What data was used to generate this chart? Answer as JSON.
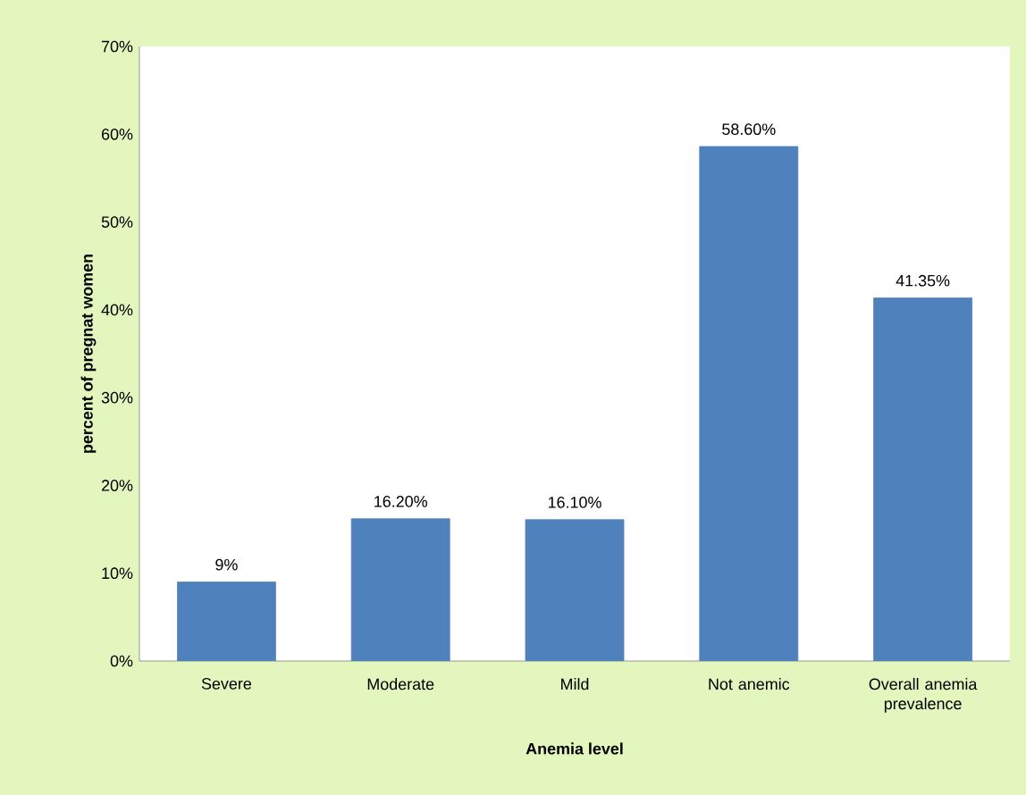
{
  "chart_data": {
    "type": "bar",
    "xlabel": "Anemia level",
    "ylabel": "percent of pregnat women",
    "categories": [
      "Severe",
      "Moderate",
      "Mild",
      "Not anemic",
      "Overall anemia prevalence"
    ],
    "values": [
      9,
      16.2,
      16.1,
      58.6,
      41.35
    ],
    "value_labels": [
      "9%",
      "16.20%",
      "16.10%",
      "58.60%",
      "41.35%"
    ],
    "color": "#4f81bd",
    "ylim": [
      0,
      70
    ],
    "yticks": [
      {
        "value": 0,
        "label": "0%"
      },
      {
        "value": 10,
        "label": "10%"
      },
      {
        "value": 20,
        "label": "20%"
      },
      {
        "value": 30,
        "label": "30%"
      },
      {
        "value": 40,
        "label": "40%"
      },
      {
        "value": 50,
        "label": "50%"
      },
      {
        "value": 60,
        "label": "60%"
      },
      {
        "value": 70,
        "label": "70%"
      }
    ],
    "grid": false
  }
}
